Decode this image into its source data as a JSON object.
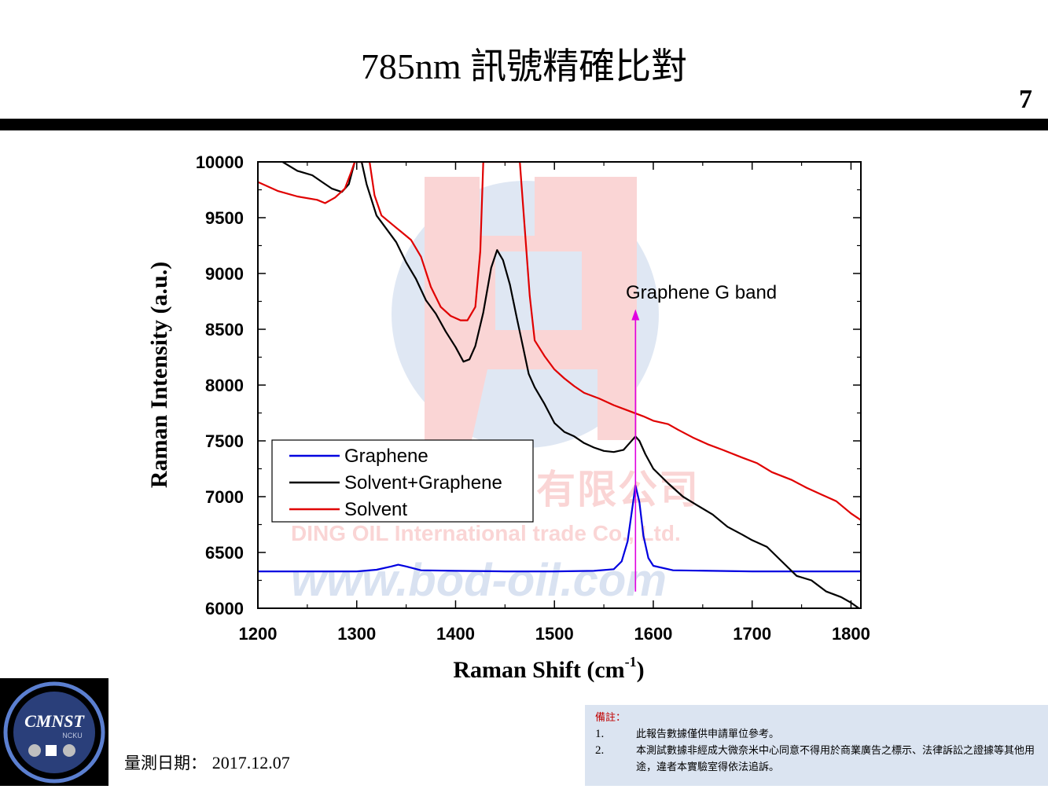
{
  "slide": {
    "title": "785nm 訊號精確比對",
    "page_number": "7"
  },
  "watermark": {
    "company_zh": "鼎沺國際貿易有限公司",
    "company_en": "DING OIL International trade Co., Ltd.",
    "website": "www.bod-oil.com"
  },
  "logo": {
    "text": "CMNST",
    "subtext": "NCKU"
  },
  "measurement": {
    "label": "量測日期：",
    "date": "2017.12.07"
  },
  "notes": {
    "title": "備註：",
    "items": [
      {
        "num": "1.",
        "text": "此報告數據僅供申請單位參考。"
      },
      {
        "num": "2.",
        "text": "本測試數據非經成大微奈米中心同意不得用於商業廣告之標示、法律訴訟之證據等其他用途，違者本實驗室得依法追訴。"
      }
    ]
  },
  "chart_data": {
    "type": "line",
    "xlabel": "Raman Shift (cm",
    "xlabel_sup": "-1",
    "xlabel_close": ")",
    "ylabel": "Raman Intensity (a.u.)",
    "xlim": [
      1200,
      1810
    ],
    "ylim": [
      6000,
      10000
    ],
    "xticks": [
      1200,
      1300,
      1400,
      1500,
      1600,
      1700,
      1800
    ],
    "yticks": [
      6000,
      6500,
      7000,
      7500,
      8000,
      8500,
      9000,
      9500,
      10000
    ],
    "legend_position": "lower-left",
    "annotation": {
      "text": "Graphene G band",
      "x": 1582,
      "y_from": 6150,
      "y_to": 8680,
      "color": "#e000e0"
    },
    "series": [
      {
        "name": "Graphene",
        "color": "#0000e0",
        "points": [
          [
            1200,
            6330
          ],
          [
            1250,
            6330
          ],
          [
            1300,
            6330
          ],
          [
            1320,
            6345
          ],
          [
            1335,
            6375
          ],
          [
            1342,
            6390
          ],
          [
            1350,
            6375
          ],
          [
            1365,
            6340
          ],
          [
            1400,
            6335
          ],
          [
            1450,
            6330
          ],
          [
            1500,
            6330
          ],
          [
            1540,
            6335
          ],
          [
            1560,
            6350
          ],
          [
            1568,
            6420
          ],
          [
            1574,
            6600
          ],
          [
            1578,
            6850
          ],
          [
            1582,
            7100
          ],
          [
            1586,
            6950
          ],
          [
            1590,
            6650
          ],
          [
            1595,
            6450
          ],
          [
            1600,
            6380
          ],
          [
            1620,
            6340
          ],
          [
            1700,
            6330
          ],
          [
            1810,
            6330
          ]
        ]
      },
      {
        "name": "Solvent+Graphene",
        "color": "#000000",
        "points": [
          [
            1225,
            10000
          ],
          [
            1240,
            9920
          ],
          [
            1255,
            9880
          ],
          [
            1265,
            9820
          ],
          [
            1275,
            9760
          ],
          [
            1285,
            9730
          ],
          [
            1292,
            9800
          ],
          [
            1298,
            10000
          ],
          [
            1305,
            10000
          ],
          [
            1310,
            9800
          ],
          [
            1320,
            9520
          ],
          [
            1330,
            9400
          ],
          [
            1340,
            9280
          ],
          [
            1350,
            9100
          ],
          [
            1360,
            8950
          ],
          [
            1370,
            8760
          ],
          [
            1380,
            8640
          ],
          [
            1390,
            8480
          ],
          [
            1400,
            8340
          ],
          [
            1408,
            8210
          ],
          [
            1414,
            8230
          ],
          [
            1420,
            8350
          ],
          [
            1428,
            8650
          ],
          [
            1436,
            9050
          ],
          [
            1442,
            9210
          ],
          [
            1448,
            9120
          ],
          [
            1455,
            8900
          ],
          [
            1462,
            8600
          ],
          [
            1468,
            8350
          ],
          [
            1474,
            8100
          ],
          [
            1480,
            7980
          ],
          [
            1490,
            7830
          ],
          [
            1500,
            7660
          ],
          [
            1510,
            7580
          ],
          [
            1520,
            7540
          ],
          [
            1530,
            7480
          ],
          [
            1540,
            7440
          ],
          [
            1550,
            7410
          ],
          [
            1560,
            7400
          ],
          [
            1570,
            7420
          ],
          [
            1576,
            7480
          ],
          [
            1582,
            7540
          ],
          [
            1586,
            7500
          ],
          [
            1592,
            7380
          ],
          [
            1600,
            7250
          ],
          [
            1615,
            7120
          ],
          [
            1630,
            7000
          ],
          [
            1645,
            6920
          ],
          [
            1660,
            6840
          ],
          [
            1675,
            6730
          ],
          [
            1690,
            6660
          ],
          [
            1700,
            6610
          ],
          [
            1715,
            6550
          ],
          [
            1730,
            6420
          ],
          [
            1745,
            6290
          ],
          [
            1760,
            6250
          ],
          [
            1775,
            6150
          ],
          [
            1790,
            6100
          ],
          [
            1800,
            6050
          ],
          [
            1808,
            6000
          ]
        ]
      },
      {
        "name": "Solvent",
        "color": "#e00000",
        "points": [
          [
            1200,
            9820
          ],
          [
            1220,
            9740
          ],
          [
            1240,
            9690
          ],
          [
            1260,
            9660
          ],
          [
            1268,
            9630
          ],
          [
            1278,
            9680
          ],
          [
            1288,
            9760
          ],
          [
            1294,
            9900
          ],
          [
            1298,
            10000
          ],
          [
            1313,
            10000
          ],
          [
            1318,
            9700
          ],
          [
            1325,
            9520
          ],
          [
            1340,
            9410
          ],
          [
            1355,
            9300
          ],
          [
            1365,
            9150
          ],
          [
            1375,
            8880
          ],
          [
            1385,
            8700
          ],
          [
            1395,
            8620
          ],
          [
            1405,
            8580
          ],
          [
            1412,
            8580
          ],
          [
            1420,
            8700
          ],
          [
            1425,
            9200
          ],
          [
            1428,
            10000
          ],
          [
            1465,
            10000
          ],
          [
            1470,
            9400
          ],
          [
            1475,
            8800
          ],
          [
            1480,
            8400
          ],
          [
            1490,
            8260
          ],
          [
            1500,
            8140
          ],
          [
            1510,
            8060
          ],
          [
            1520,
            7990
          ],
          [
            1530,
            7930
          ],
          [
            1545,
            7880
          ],
          [
            1560,
            7820
          ],
          [
            1575,
            7770
          ],
          [
            1590,
            7720
          ],
          [
            1600,
            7680
          ],
          [
            1615,
            7650
          ],
          [
            1625,
            7600
          ],
          [
            1640,
            7530
          ],
          [
            1655,
            7470
          ],
          [
            1670,
            7420
          ],
          [
            1690,
            7350
          ],
          [
            1705,
            7300
          ],
          [
            1720,
            7220
          ],
          [
            1740,
            7150
          ],
          [
            1755,
            7080
          ],
          [
            1770,
            7020
          ],
          [
            1785,
            6960
          ],
          [
            1800,
            6850
          ],
          [
            1810,
            6790
          ]
        ]
      }
    ]
  }
}
